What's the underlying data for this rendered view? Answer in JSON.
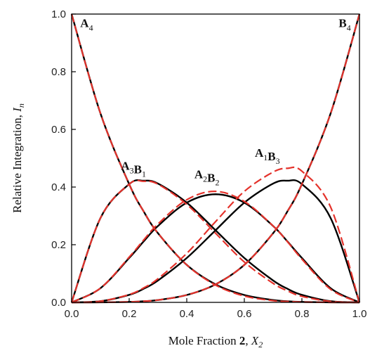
{
  "chart_data": {
    "type": "line",
    "xlabel": {
      "prefix": "Mole Fraction ",
      "bold": "2",
      "sep": ", ",
      "var": "X",
      "sub": "2"
    },
    "ylabel": {
      "prefix": "Relative Integration, ",
      "var": "I",
      "sub": "n"
    },
    "xlim": [
      0,
      1
    ],
    "ylim": [
      0,
      1
    ],
    "x_ticks": [
      "0.0",
      "0.2",
      "0.4",
      "0.6",
      "0.8",
      "1.0"
    ],
    "y_ticks": [
      "0.0",
      "0.2",
      "0.4",
      "0.6",
      "0.8",
      "1.0"
    ],
    "grid": false,
    "styles": {
      "black_solid": {
        "color": "#000000",
        "dash": "none"
      },
      "red_dashed": {
        "color": "#e4322b",
        "dash": "12 5"
      }
    },
    "x": [
      0.0,
      0.1,
      0.2,
      0.25,
      0.3,
      0.4,
      0.5,
      0.6,
      0.7,
      0.75,
      0.8,
      0.9,
      1.0
    ],
    "series": [
      {
        "label": "A4",
        "line": "black_solid",
        "values": [
          1.0,
          0.656,
          0.41,
          0.316,
          0.24,
          0.13,
          0.0625,
          0.0256,
          0.0081,
          0.0039,
          0.0016,
          0.0001,
          0.0
        ]
      },
      {
        "label": "A3B1",
        "line": "black_solid",
        "values": [
          0.0,
          0.292,
          0.41,
          0.422,
          0.412,
          0.346,
          0.25,
          0.154,
          0.076,
          0.047,
          0.026,
          0.004,
          0.0
        ]
      },
      {
        "label": "A2B2",
        "line": "black_solid",
        "values": [
          0.0,
          0.049,
          0.154,
          0.211,
          0.265,
          0.346,
          0.375,
          0.346,
          0.265,
          0.211,
          0.154,
          0.049,
          0.0
        ]
      },
      {
        "label": "A1B3",
        "line": "black_solid",
        "values": [
          0.0,
          0.004,
          0.026,
          0.047,
          0.076,
          0.154,
          0.25,
          0.346,
          0.412,
          0.422,
          0.41,
          0.292,
          0.0
        ]
      },
      {
        "label": "B4",
        "line": "black_solid",
        "values": [
          0.0,
          0.0001,
          0.0016,
          0.0039,
          0.0081,
          0.0256,
          0.0625,
          0.13,
          0.24,
          0.316,
          0.41,
          0.656,
          1.0
        ]
      },
      {
        "label": "A4",
        "line": "red_dashed",
        "values": [
          1.0,
          0.656,
          0.41,
          0.316,
          0.24,
          0.13,
          0.06,
          0.022,
          0.006,
          0.003,
          0.001,
          0.0,
          0.0
        ]
      },
      {
        "label": "A3B1",
        "line": "red_dashed",
        "values": [
          0.0,
          0.292,
          0.41,
          0.42,
          0.41,
          0.34,
          0.24,
          0.14,
          0.066,
          0.04,
          0.021,
          0.003,
          0.0
        ]
      },
      {
        "label": "A2B2",
        "line": "red_dashed",
        "values": [
          0.0,
          0.049,
          0.157,
          0.216,
          0.272,
          0.356,
          0.385,
          0.35,
          0.265,
          0.21,
          0.15,
          0.045,
          0.0
        ]
      },
      {
        "label": "A1B3",
        "line": "red_dashed",
        "values": [
          0.0,
          0.004,
          0.027,
          0.05,
          0.082,
          0.17,
          0.28,
          0.385,
          0.452,
          0.465,
          0.455,
          0.33,
          0.0
        ]
      },
      {
        "label": "B4",
        "line": "red_dashed",
        "values": [
          0.0,
          0.0001,
          0.0016,
          0.0039,
          0.0081,
          0.0256,
          0.0625,
          0.13,
          0.24,
          0.316,
          0.41,
          0.656,
          1.0
        ]
      }
    ],
    "annotations": [
      {
        "id": "A4",
        "parts": [
          {
            "t": "A",
            "sub": "4"
          }
        ],
        "x": 0.03,
        "y": 0.955,
        "anchor": "start"
      },
      {
        "id": "B4",
        "parts": [
          {
            "t": "B",
            "sub": "4"
          }
        ],
        "x": 0.97,
        "y": 0.955,
        "anchor": "end"
      },
      {
        "id": "A3B1",
        "parts": [
          {
            "t": "A",
            "sub": "3"
          },
          {
            "t": "B",
            "sub": "1"
          }
        ],
        "x": 0.215,
        "y": 0.46,
        "anchor": "middle"
      },
      {
        "id": "A2B2",
        "parts": [
          {
            "t": "A",
            "sub": "2"
          },
          {
            "t": "B",
            "sub": "2"
          }
        ],
        "x": 0.47,
        "y": 0.43,
        "anchor": "middle"
      },
      {
        "id": "A1B3",
        "parts": [
          {
            "t": "A",
            "sub": "1"
          },
          {
            "t": "B",
            "sub": "3"
          }
        ],
        "x": 0.68,
        "y": 0.505,
        "anchor": "middle"
      }
    ]
  }
}
